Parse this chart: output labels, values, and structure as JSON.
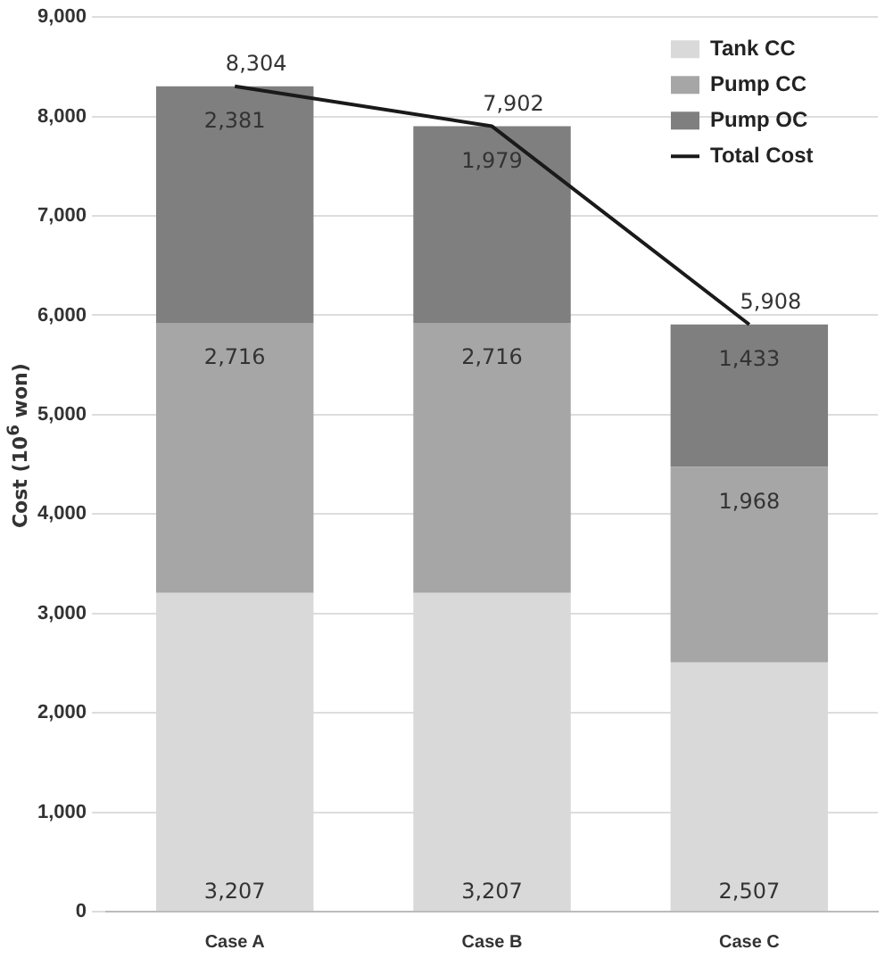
{
  "chart_data": {
    "type": "bar",
    "stacked": true,
    "ylabel": "Cost (10$^{6}$ won)",
    "categories": [
      "Case A",
      "Case B",
      "Case C"
    ],
    "series": [
      {
        "name": "Tank CC",
        "color": "#d9d9d9",
        "values": [
          3207,
          3207,
          2507
        ],
        "value_labels": [
          "3,207",
          "3,207",
          "2,507"
        ]
      },
      {
        "name": "Pump CC",
        "color": "#a6a6a6",
        "values": [
          2716,
          2716,
          1968
        ],
        "value_labels": [
          "2,716",
          "2,716",
          "1,968"
        ]
      },
      {
        "name": "Pump OC",
        "color": "#7f7f7f",
        "values": [
          2381,
          1979,
          1433
        ],
        "value_labels": [
          "2,381",
          "1,979",
          "1,433"
        ]
      },
      {
        "name": "Total Cost",
        "type": "line",
        "color": "#1a1a1a",
        "values": [
          8304,
          7902,
          5908
        ],
        "value_labels": [
          "8,304",
          "7,902",
          "5,908"
        ]
      }
    ],
    "ylim": [
      0,
      9000
    ],
    "yticks": [
      0,
      {
        "value": 1000,
        "label": "1,000"
      },
      {
        "value": 2000,
        "label": "2,000"
      },
      {
        "value": 3000,
        "label": "3,000"
      },
      {
        "value": 4000,
        "label": "4,000"
      },
      {
        "value": 5000,
        "label": "5,000"
      },
      {
        "value": 6000,
        "label": "6,000"
      },
      {
        "value": 7000,
        "label": "7,000"
      },
      {
        "value": 8000,
        "label": "8,000"
      },
      {
        "value": 9000,
        "label": "9,000"
      }
    ],
    "grid": "y",
    "legend": "top right",
    "marker": "none"
  }
}
